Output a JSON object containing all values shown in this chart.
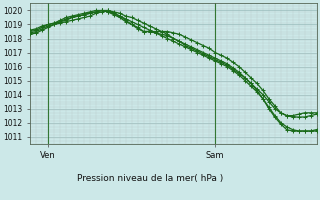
{
  "background_color": "#cce8e8",
  "grid_color_major": "#99bbbb",
  "grid_color_minor": "#bbcccc",
  "line_color": "#1a6b1a",
  "title": "Pression niveau de la mer( hPa )",
  "xlabel_ven": "Ven",
  "xlabel_sam": "Sam",
  "ylim": [
    1010.5,
    1020.5
  ],
  "yticks": [
    1011,
    1012,
    1013,
    1014,
    1015,
    1016,
    1017,
    1018,
    1019,
    1020
  ],
  "xlim": [
    0,
    48
  ],
  "ven_line_x": 3,
  "sam_line_x": 31,
  "num_x_minor": 48,
  "series1_x": [
    0,
    1,
    2,
    3,
    4,
    5,
    6,
    7,
    8,
    9,
    10,
    11,
    12,
    13,
    14,
    15,
    16,
    17,
    18,
    19,
    20,
    21,
    22,
    23,
    24,
    25,
    26,
    27,
    28,
    29,
    30,
    31,
    32,
    33,
    34,
    35,
    36,
    37,
    38,
    39,
    40,
    41,
    42,
    43,
    44,
    45,
    46,
    47,
    48
  ],
  "series1_y": [
    1018.5,
    1018.6,
    1018.8,
    1019.0,
    1019.1,
    1019.2,
    1019.4,
    1019.5,
    1019.6,
    1019.7,
    1019.8,
    1019.9,
    1020.0,
    1020.0,
    1019.9,
    1019.8,
    1019.6,
    1019.5,
    1019.3,
    1019.1,
    1018.9,
    1018.7,
    1018.5,
    1018.3,
    1018.0,
    1017.8,
    1017.5,
    1017.3,
    1017.1,
    1016.9,
    1016.7,
    1016.5,
    1016.3,
    1016.1,
    1015.8,
    1015.5,
    1015.2,
    1014.8,
    1014.4,
    1014.0,
    1013.5,
    1013.0,
    1012.7,
    1012.5,
    1012.5,
    1012.6,
    1012.7,
    1012.7,
    1012.7
  ],
  "series2_x": [
    0,
    1,
    2,
    3,
    4,
    5,
    6,
    7,
    8,
    9,
    10,
    11,
    12,
    13,
    14,
    15,
    16,
    17,
    18,
    19,
    20,
    21,
    22,
    23,
    24,
    25,
    26,
    27,
    28,
    29,
    30,
    31,
    32,
    33,
    34,
    35,
    36,
    37,
    38,
    39,
    40,
    41,
    42,
    43,
    44,
    45,
    46,
    47,
    48
  ],
  "series2_y": [
    1018.3,
    1018.4,
    1018.6,
    1018.8,
    1019.0,
    1019.1,
    1019.2,
    1019.3,
    1019.4,
    1019.5,
    1019.6,
    1019.8,
    1019.9,
    1020.0,
    1019.8,
    1019.6,
    1019.4,
    1019.2,
    1019.0,
    1018.8,
    1018.6,
    1018.4,
    1018.2,
    1018.0,
    1017.8,
    1017.6,
    1017.4,
    1017.2,
    1017.0,
    1016.8,
    1016.6,
    1016.4,
    1016.2,
    1016.0,
    1015.7,
    1015.4,
    1015.0,
    1014.6,
    1014.2,
    1013.7,
    1013.1,
    1012.5,
    1012.0,
    1011.7,
    1011.5,
    1011.4,
    1011.4,
    1011.4,
    1011.4
  ],
  "series3_x": [
    0,
    1,
    2,
    3,
    4,
    5,
    6,
    7,
    8,
    9,
    10,
    11,
    12,
    13,
    14,
    15,
    16,
    17,
    18,
    19,
    20,
    21,
    22,
    23,
    24,
    25,
    26,
    27,
    28,
    29,
    30,
    31,
    32,
    33,
    34,
    35,
    36,
    37,
    38,
    39,
    40,
    41,
    42,
    43,
    44,
    45,
    46,
    47,
    48
  ],
  "series3_y": [
    1018.4,
    1018.5,
    1018.7,
    1018.9,
    1019.0,
    1019.2,
    1019.3,
    1019.5,
    1019.6,
    1019.7,
    1019.8,
    1019.9,
    1020.0,
    1019.9,
    1019.7,
    1019.5,
    1019.2,
    1019.0,
    1018.8,
    1018.5,
    1018.5,
    1018.4,
    1018.3,
    1018.2,
    1018.0,
    1017.8,
    1017.6,
    1017.4,
    1017.2,
    1017.0,
    1016.8,
    1016.6,
    1016.4,
    1016.2,
    1015.9,
    1015.6,
    1015.2,
    1014.8,
    1014.3,
    1013.7,
    1013.0,
    1012.4,
    1011.9,
    1011.5,
    1011.4,
    1011.4,
    1011.4,
    1011.4,
    1011.5
  ],
  "series4_x": [
    0,
    1,
    2,
    3,
    4,
    5,
    6,
    7,
    8,
    9,
    10,
    11,
    12,
    13,
    14,
    15,
    16,
    17,
    18,
    19,
    20,
    21,
    22,
    23,
    24,
    25,
    26,
    27,
    28,
    29,
    30,
    31,
    32,
    33,
    34,
    35,
    36,
    37,
    38,
    39,
    40,
    41,
    42,
    43,
    44,
    45,
    46,
    47,
    48
  ],
  "series4_y": [
    1018.6,
    1018.7,
    1018.9,
    1019.0,
    1019.1,
    1019.3,
    1019.5,
    1019.6,
    1019.7,
    1019.8,
    1019.9,
    1020.0,
    1020.0,
    1019.9,
    1019.8,
    1019.6,
    1019.3,
    1019.0,
    1018.7,
    1018.5,
    1018.5,
    1018.5,
    1018.5,
    1018.5,
    1018.4,
    1018.3,
    1018.1,
    1017.9,
    1017.7,
    1017.5,
    1017.3,
    1017.0,
    1016.8,
    1016.6,
    1016.3,
    1016.0,
    1015.6,
    1015.2,
    1014.8,
    1014.3,
    1013.7,
    1013.2,
    1012.7,
    1012.5,
    1012.4,
    1012.4,
    1012.4,
    1012.5,
    1012.6
  ]
}
